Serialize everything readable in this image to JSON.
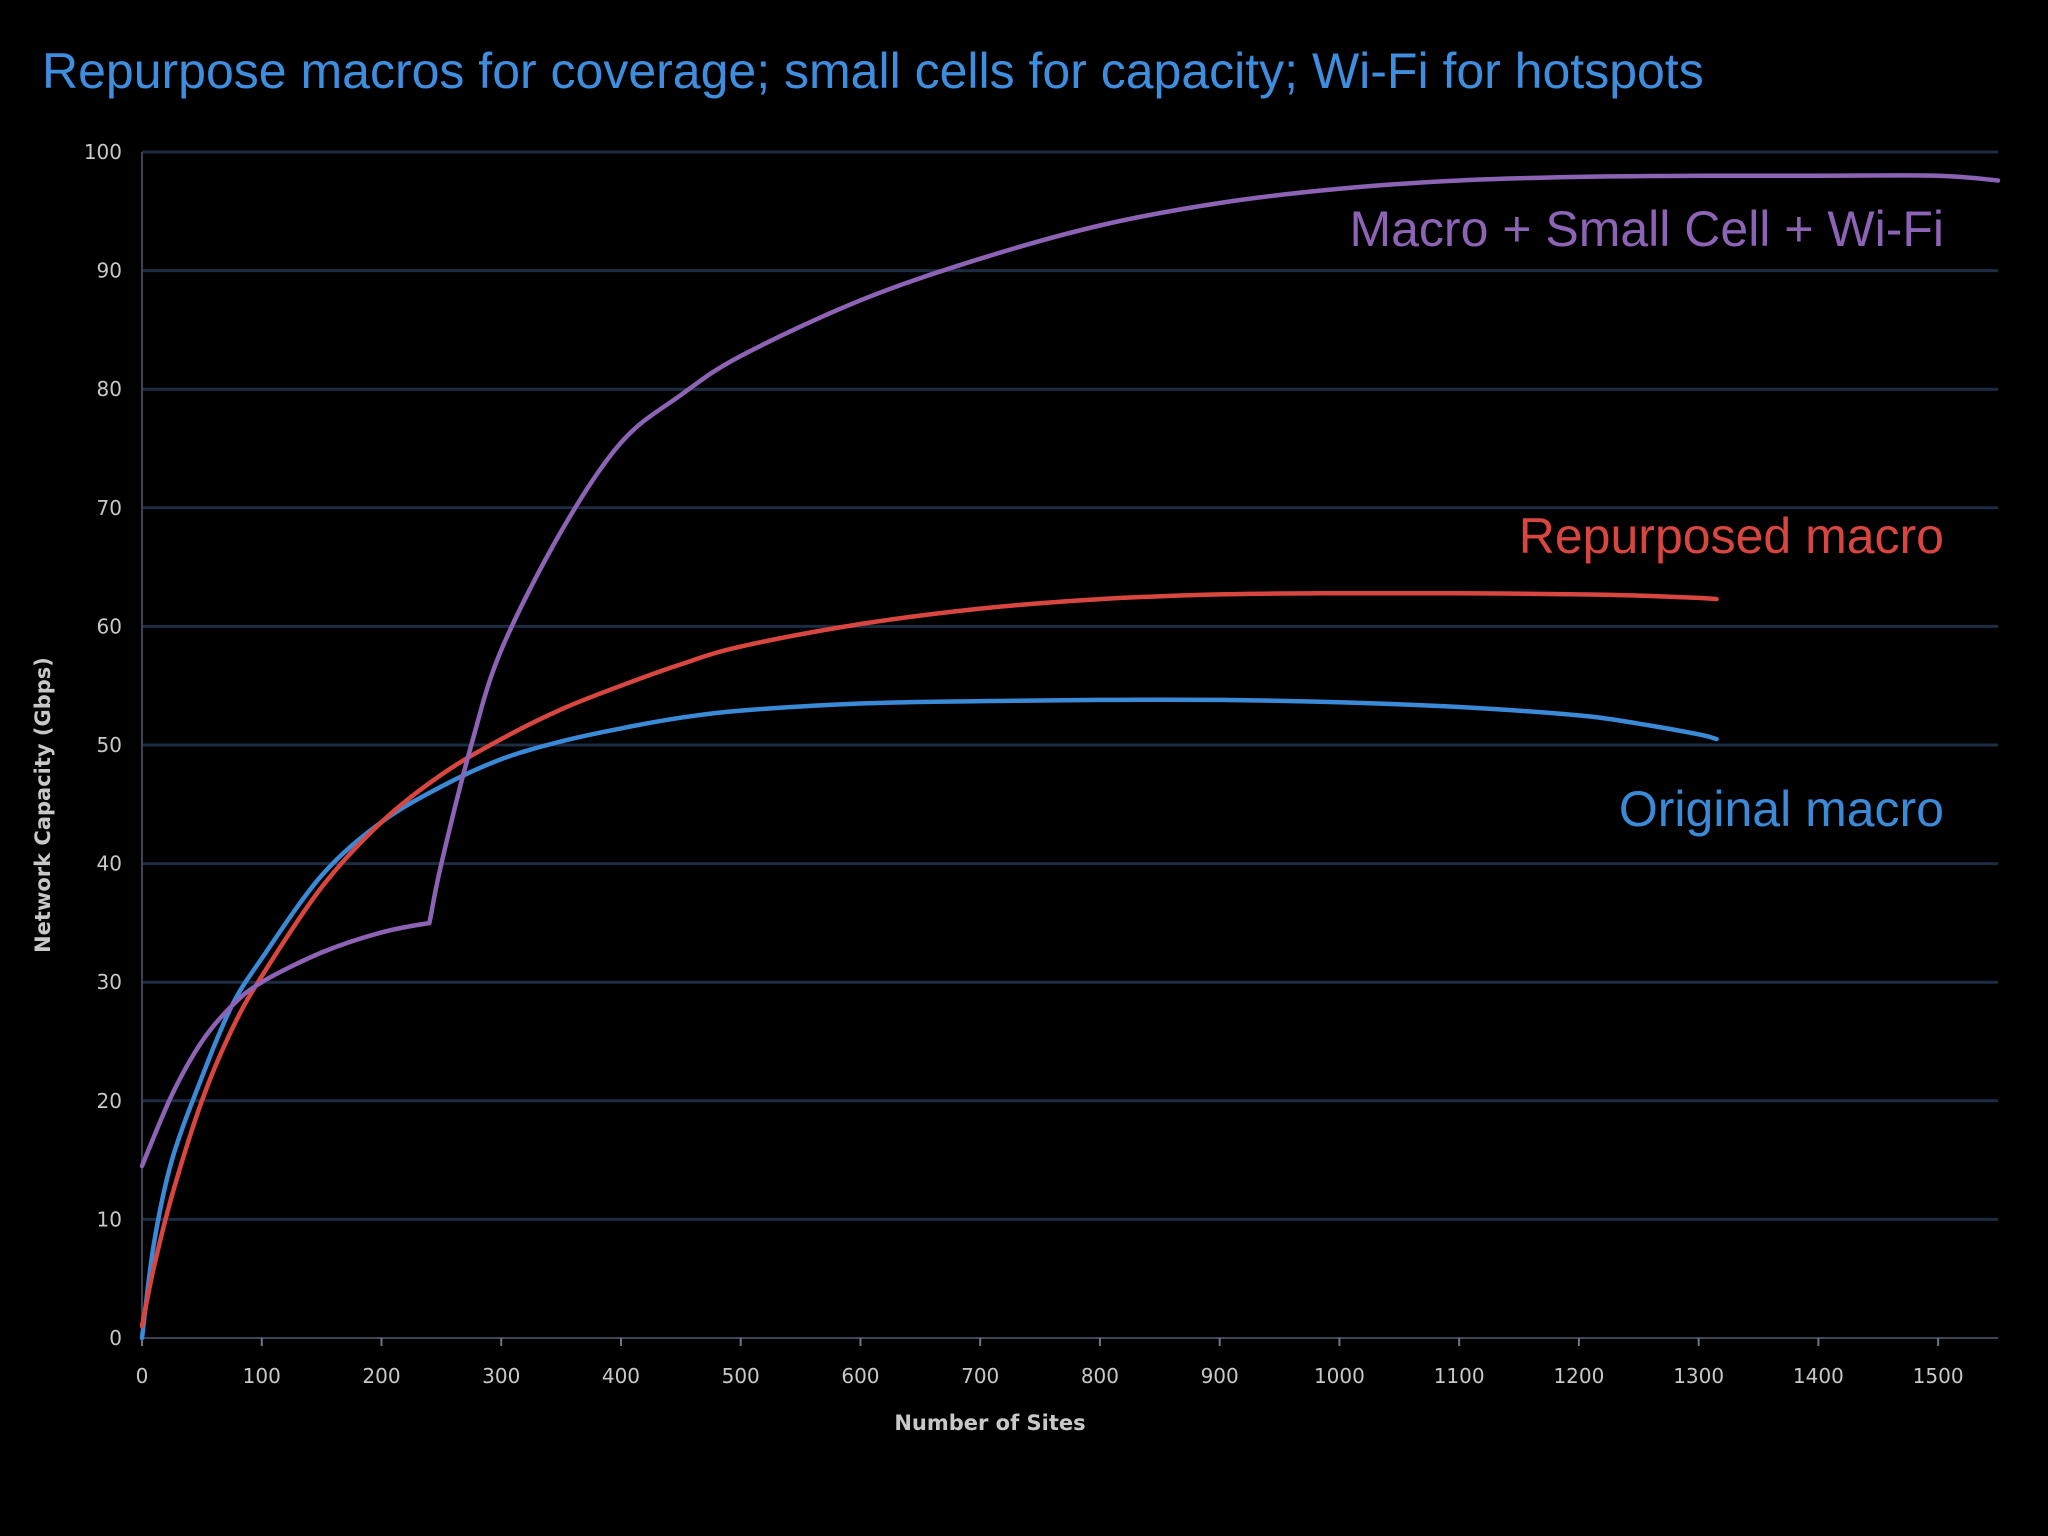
{
  "chart_data": {
    "type": "line",
    "title": "Repurpose macros for coverage; small cells for capacity; Wi-Fi for hotspots",
    "xlabel": "Number of Sites",
    "ylabel": "Network Capacity (Gbps)",
    "xlim": [
      0,
      1550
    ],
    "ylim": [
      0,
      100
    ],
    "xticks": [
      0,
      100,
      200,
      300,
      400,
      500,
      600,
      700,
      800,
      900,
      1000,
      1100,
      1200,
      1300,
      1400,
      1500
    ],
    "yticks": [
      0,
      10,
      20,
      30,
      40,
      50,
      60,
      70,
      80,
      90,
      100
    ],
    "grid": true,
    "series": [
      {
        "name": "Original macro",
        "color": "#3a8ad8",
        "x": [
          0,
          10,
          25,
          50,
          75,
          100,
          150,
          200,
          250,
          300,
          350,
          400,
          450,
          500,
          600,
          700,
          800,
          900,
          1000,
          1100,
          1200,
          1250,
          1300,
          1315
        ],
        "y": [
          0,
          8,
          15,
          22,
          28,
          32,
          39,
          43.5,
          46.5,
          48.8,
          50.3,
          51.4,
          52.3,
          52.9,
          53.5,
          53.7,
          53.8,
          53.8,
          53.6,
          53.2,
          52.5,
          51.8,
          50.9,
          50.5
        ]
      },
      {
        "name": "Repurposed macro",
        "color": "#d9463f",
        "x": [
          0,
          10,
          25,
          50,
          75,
          100,
          150,
          200,
          250,
          300,
          350,
          400,
          450,
          500,
          600,
          700,
          800,
          900,
          1000,
          1100,
          1200,
          1250,
          1300,
          1315
        ],
        "y": [
          1,
          6,
          12,
          20,
          26,
          30.5,
          38,
          43.5,
          47.5,
          50.5,
          53,
          55,
          56.8,
          58.3,
          60.2,
          61.5,
          62.3,
          62.7,
          62.8,
          62.8,
          62.7,
          62.6,
          62.4,
          62.3
        ]
      },
      {
        "name": "Macro + Small Cell + Wi-Fi",
        "color": "#8c63b5",
        "x": [
          0,
          25,
          50,
          75,
          100,
          150,
          200,
          240,
          241,
          250,
          275,
          300,
          350,
          400,
          450,
          500,
          600,
          700,
          800,
          900,
          1000,
          1100,
          1200,
          1300,
          1400,
          1500,
          1550
        ],
        "y": [
          14.5,
          20.5,
          25,
          28,
          30,
          32.5,
          34.2,
          35,
          35.5,
          40,
          50,
          58,
          68,
          75.5,
          79.5,
          82.8,
          87.5,
          91,
          93.8,
          95.7,
          96.9,
          97.6,
          97.9,
          98,
          98,
          98,
          97.6
        ]
      }
    ],
    "annotations": [
      "Macro + Small Cell + Wi-Fi",
      "Repurposed macro",
      "Original macro"
    ]
  }
}
